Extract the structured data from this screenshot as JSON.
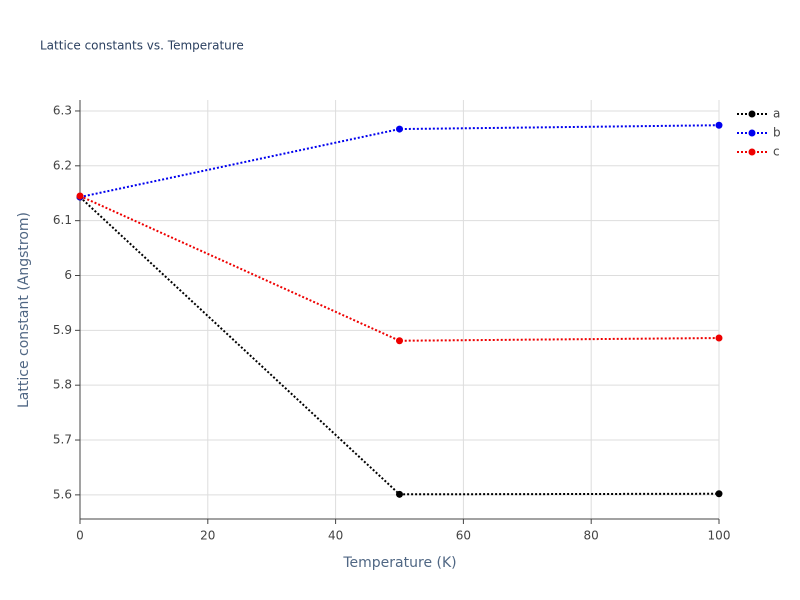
{
  "chart_data": {
    "type": "line",
    "title": "Lattice constants vs. Temperature",
    "x_label": "Temperature (K)",
    "y_label": "Lattice constant (Angstrom)",
    "x": [
      0,
      50,
      100
    ],
    "series": [
      {
        "name": "a",
        "color": "#000000",
        "values": [
          6.143,
          5.601,
          5.602
        ]
      },
      {
        "name": "b",
        "color": "#0000ee",
        "values": [
          6.143,
          6.267,
          6.274
        ]
      },
      {
        "name": "c",
        "color": "#ee0000",
        "values": [
          6.145,
          5.881,
          5.886
        ]
      }
    ],
    "xlim": [
      0,
      100
    ],
    "xticks": [
      0,
      20,
      40,
      60,
      80,
      100
    ],
    "ylim": [
      5.556,
      6.32
    ],
    "yticks": [
      5.6,
      5.7,
      5.8,
      5.9,
      6,
      6.1,
      6.2,
      6.3
    ],
    "grid": true,
    "legend": "right"
  }
}
